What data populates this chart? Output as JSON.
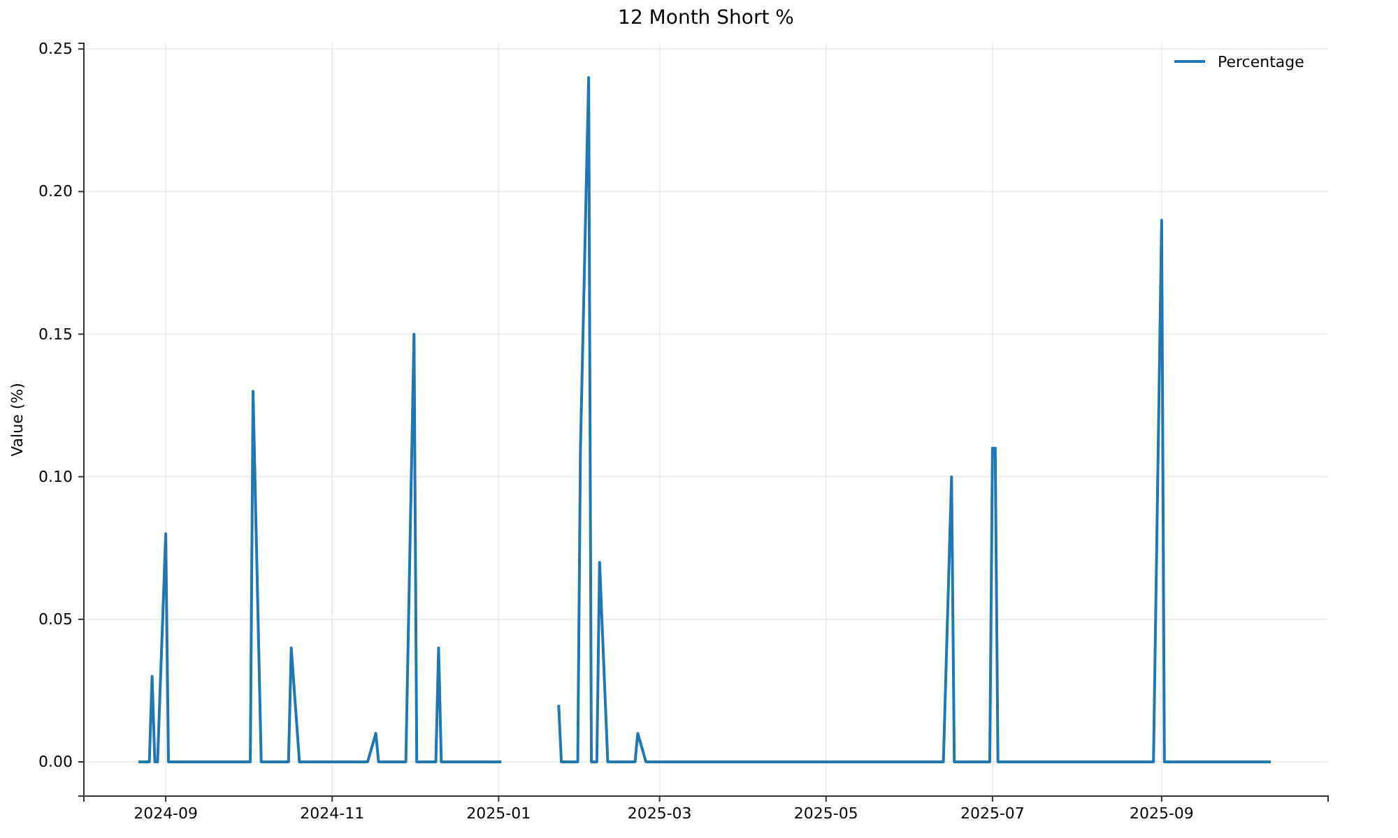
{
  "chart_data": {
    "type": "line",
    "title": "12 Month Short %",
    "ylabel": "Value (%)",
    "x": [
      "2024-08-22",
      "2024-08-26",
      "2024-08-27",
      "2024-08-28",
      "2024-08-29",
      "2024-09-01",
      "2024-09-02",
      "2024-10-02",
      "2024-10-03",
      "2024-10-06",
      "2024-10-16",
      "2024-10-17",
      "2024-10-20",
      "2024-11-14",
      "2024-11-17",
      "2024-11-18",
      "2024-11-28",
      "2024-12-01",
      "2024-12-02",
      "2024-12-09",
      "2024-12-10",
      "2024-12-11",
      "2025-01-02",
      "2025-01-12",
      "2025-01-23",
      "2025-01-24",
      "2025-01-30",
      "2025-01-31",
      "2025-02-03",
      "2025-02-04",
      "2025-02-06",
      "2025-02-07",
      "2025-02-10",
      "2025-02-20",
      "2025-02-21",
      "2025-02-24",
      "2025-06-13",
      "2025-06-16",
      "2025-06-17",
      "2025-06-30",
      "2025-07-01",
      "2025-07-02",
      "2025-07-03",
      "2025-08-29",
      "2025-09-01",
      "2025-09-02",
      "2025-10-11"
    ],
    "series": [
      {
        "name": "Percentage",
        "color": "#1f77b4",
        "values": [
          0,
          0,
          0.03,
          0,
          0,
          0.08,
          0,
          0,
          0.13,
          0,
          0,
          0.04,
          0,
          0,
          0.01,
          0,
          0,
          0.15,
          0,
          0,
          0.04,
          0,
          0,
          null,
          0.02,
          0,
          0,
          0.11,
          0.24,
          0,
          0,
          0.07,
          0,
          0,
          0.01,
          0,
          0,
          0.1,
          0,
          0,
          0.11,
          0.11,
          0,
          0,
          0.19,
          0,
          0
        ]
      }
    ],
    "xlim": [
      "2024-08-02",
      "2025-11-01"
    ],
    "xticks": [
      "2024-09",
      "2024-11",
      "2025-01",
      "2025-03",
      "2025-05",
      "2025-07",
      "2025-09"
    ],
    "ylim": [
      -0.012,
      0.252
    ],
    "yticks": [
      {
        "value": 0,
        "label": "0.00"
      },
      {
        "value": 0.05,
        "label": "0.05"
      },
      {
        "value": 0.1,
        "label": "0.10"
      },
      {
        "value": 0.15,
        "label": "0.15"
      },
      {
        "value": 0.2,
        "label": "0.20"
      },
      {
        "value": 0.25,
        "label": "0.25"
      }
    ],
    "grid": true,
    "legend": "top right"
  }
}
